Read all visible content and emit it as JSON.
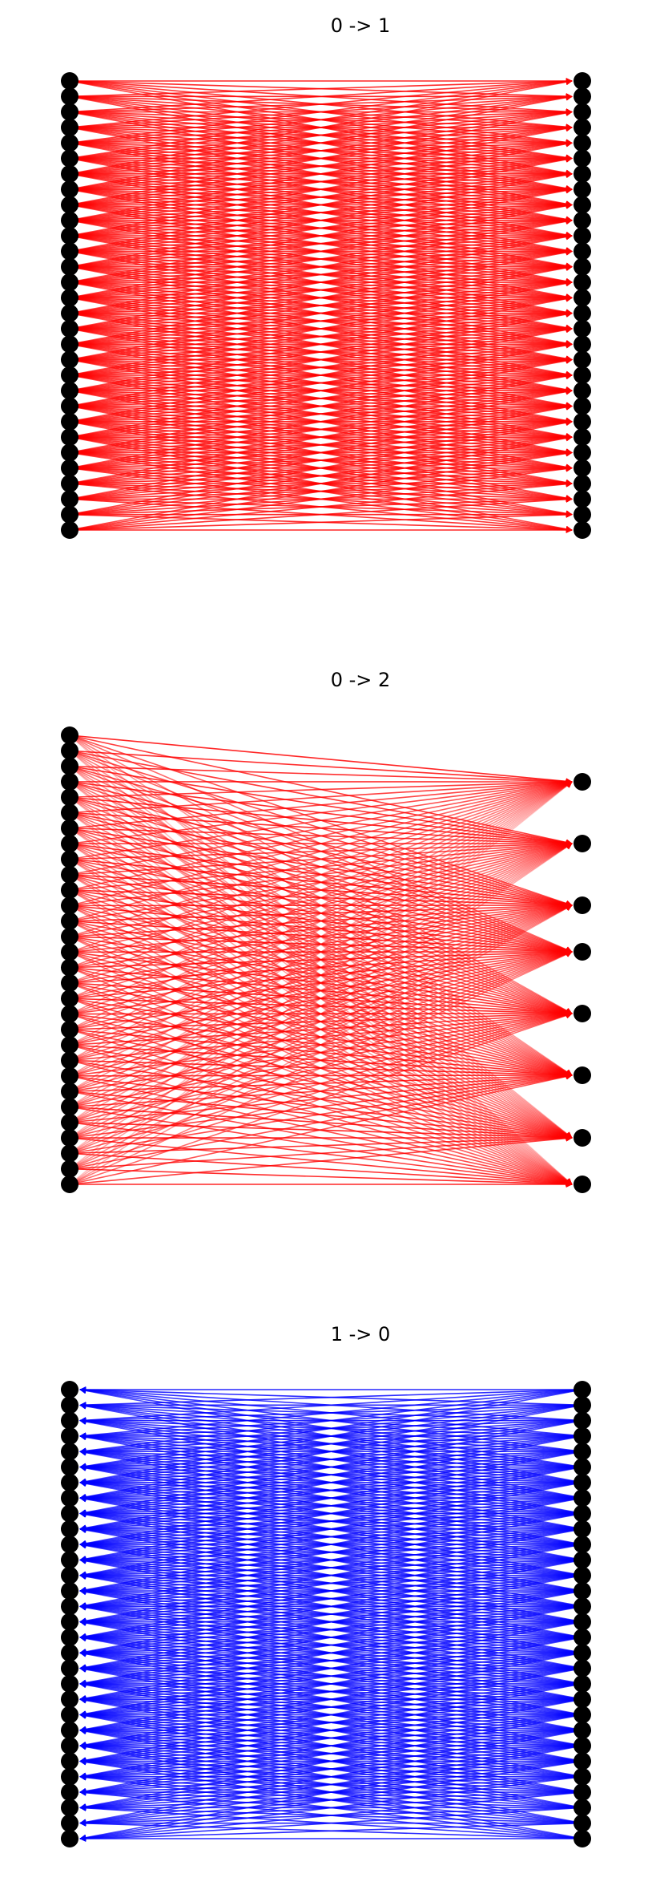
{
  "panels": [
    {
      "title": "0 -> 1",
      "source_count": 30,
      "target_count": 30,
      "edge_color": "#ff0000",
      "direction": "left-to-right",
      "connectivity": "dense (each source connects to many targets)"
    },
    {
      "title": "0 -> 2",
      "source_count": 30,
      "target_count": 8,
      "edge_color": "#ff0000",
      "direction": "left-to-right",
      "connectivity": "dense (each source connects to many targets)"
    },
    {
      "title": "1 -> 0",
      "source_count": 30,
      "target_count": 30,
      "edge_color": "#0000ff",
      "direction": "right-to-left",
      "connectivity": "dense (each source connects to many targets)"
    }
  ],
  "node_color": "#000000"
}
